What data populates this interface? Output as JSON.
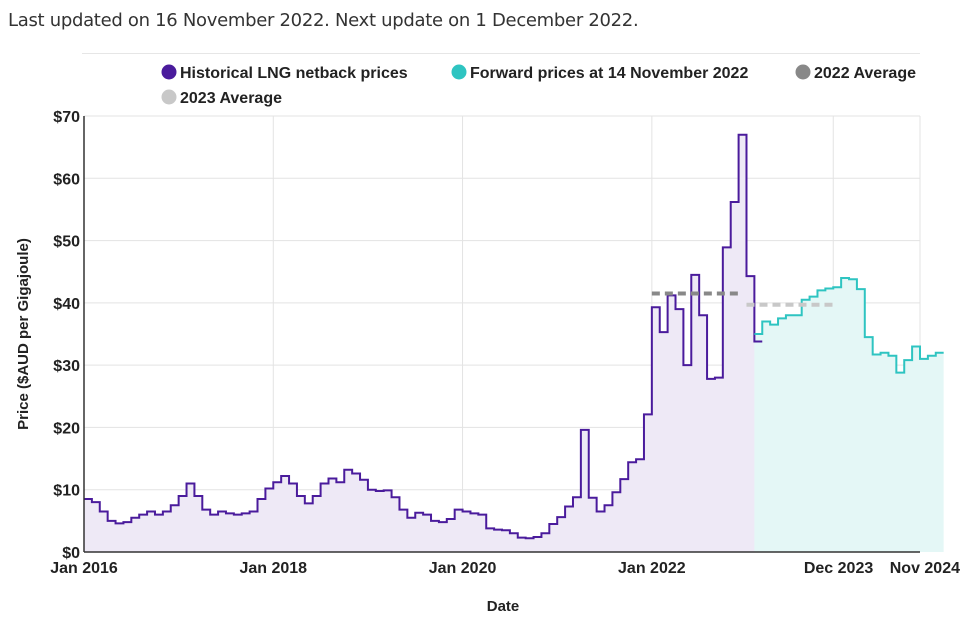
{
  "header": {
    "updated_text": "Last updated on 16 November 2022. Next update on 1 December 2022."
  },
  "chart_data": {
    "type": "line",
    "step": true,
    "xlabel": "Date",
    "ylabel": "Price ($AUD per Gigajoule)",
    "ylim": [
      0,
      70
    ],
    "xlim": [
      "2016-01",
      "2024-11"
    ],
    "yticks": [
      0,
      10,
      20,
      30,
      40,
      50,
      60,
      70
    ],
    "ytick_labels": [
      "$0",
      "$10",
      "$20",
      "$30",
      "$40",
      "$50",
      "$60",
      "$70"
    ],
    "xticks": [
      "2016-01",
      "2018-01",
      "2020-01",
      "2022-01",
      "2023-12",
      "2024-11"
    ],
    "xtick_labels": [
      "Jan 2016",
      "Jan 2018",
      "Jan 2020",
      "Jan 2022",
      "Dec 2023",
      "Nov 2024"
    ],
    "grid": true,
    "legend_position": "top",
    "series": [
      {
        "name": "Historical LNG netback prices",
        "color": "#4a1b9c",
        "fill": "#eee9f6",
        "start": "2016-01",
        "values": [
          8.5,
          8.0,
          6.5,
          5.0,
          4.6,
          4.8,
          5.5,
          6.0,
          6.5,
          6.0,
          6.5,
          7.5,
          9.0,
          11.0,
          9.0,
          6.8,
          6.0,
          6.5,
          6.2,
          6.0,
          6.2,
          6.5,
          8.5,
          10.2,
          11.2,
          12.2,
          11.0,
          9.0,
          7.8,
          9.0,
          11.0,
          11.8,
          11.2,
          13.2,
          12.6,
          11.6,
          10.0,
          9.8,
          9.9,
          8.8,
          6.8,
          5.5,
          6.3,
          6.0,
          5.0,
          4.8,
          5.3,
          6.8,
          6.5,
          6.2,
          6.0,
          3.8,
          3.6,
          3.5,
          3.0,
          2.3,
          2.2,
          2.4,
          3.0,
          4.5,
          5.6,
          7.3,
          8.8,
          19.6,
          8.7,
          6.5,
          7.5,
          9.6,
          11.7,
          14.4,
          14.9,
          22.1,
          39.3,
          35.3,
          41.2,
          39.0,
          30.0,
          44.5,
          38.0,
          27.8,
          28.0,
          48.9,
          56.2,
          67.0,
          44.3,
          33.8
        ]
      },
      {
        "name": "Forward prices at 14 November 2022",
        "color": "#2ec4c1",
        "fill": "#e4f7f6",
        "start": "2023-02",
        "values": [
          35.0,
          37.0,
          36.5,
          37.5,
          38.0,
          38.0,
          40.5,
          41.0,
          42.0,
          42.3,
          42.5,
          44.0,
          43.8,
          42.2,
          34.5,
          31.7,
          32.0,
          31.5,
          28.8,
          30.8,
          33.0,
          31.0,
          31.5,
          32.0
        ]
      },
      {
        "name": "2022 Average",
        "color": "#888888",
        "dashed": true,
        "x_range": [
          "2022-01",
          "2022-12"
        ],
        "value": 41.5
      },
      {
        "name": "2023 Average",
        "color": "#c8c8c8",
        "dashed": true,
        "x_range": [
          "2023-01",
          "2023-12"
        ],
        "value": 39.7
      }
    ]
  }
}
